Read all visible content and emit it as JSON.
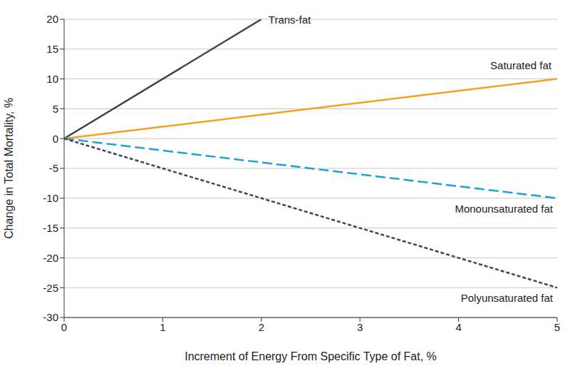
{
  "chart_data": {
    "type": "line",
    "x_label": "Increment of Energy From Specific Type of Fat, %",
    "y_label": "Change in Total Mortality, %",
    "x": [
      0,
      1,
      2,
      3,
      4,
      5
    ],
    "xlim": [
      0,
      5
    ],
    "xticks": [
      0,
      1,
      2,
      3,
      4,
      5
    ],
    "ylim": [
      -30,
      20
    ],
    "yticks": [
      -30,
      -25,
      -20,
      -15,
      -10,
      -5,
      0,
      5,
      10,
      15,
      20
    ],
    "grid": true,
    "series": [
      {
        "name": "Trans-fat",
        "color": "#3a4953",
        "line_style": "solid",
        "values": [
          0,
          10,
          20,
          null,
          null,
          null
        ]
      },
      {
        "name": "Saturated fat",
        "color": "#f5a21e",
        "line_style": "solid",
        "values": [
          0,
          2,
          4,
          6,
          8,
          10
        ]
      },
      {
        "name": "Monounsaturated fat",
        "color": "#1ea0dc",
        "line_style": "dashed",
        "values": [
          0,
          -2,
          -4,
          -6,
          -8,
          -10
        ]
      },
      {
        "name": "Polyunsaturated fat",
        "color": "#3a4953",
        "line_style": "dotted",
        "values": [
          0,
          -5,
          -10,
          -15,
          -20,
          -25
        ]
      }
    ]
  }
}
